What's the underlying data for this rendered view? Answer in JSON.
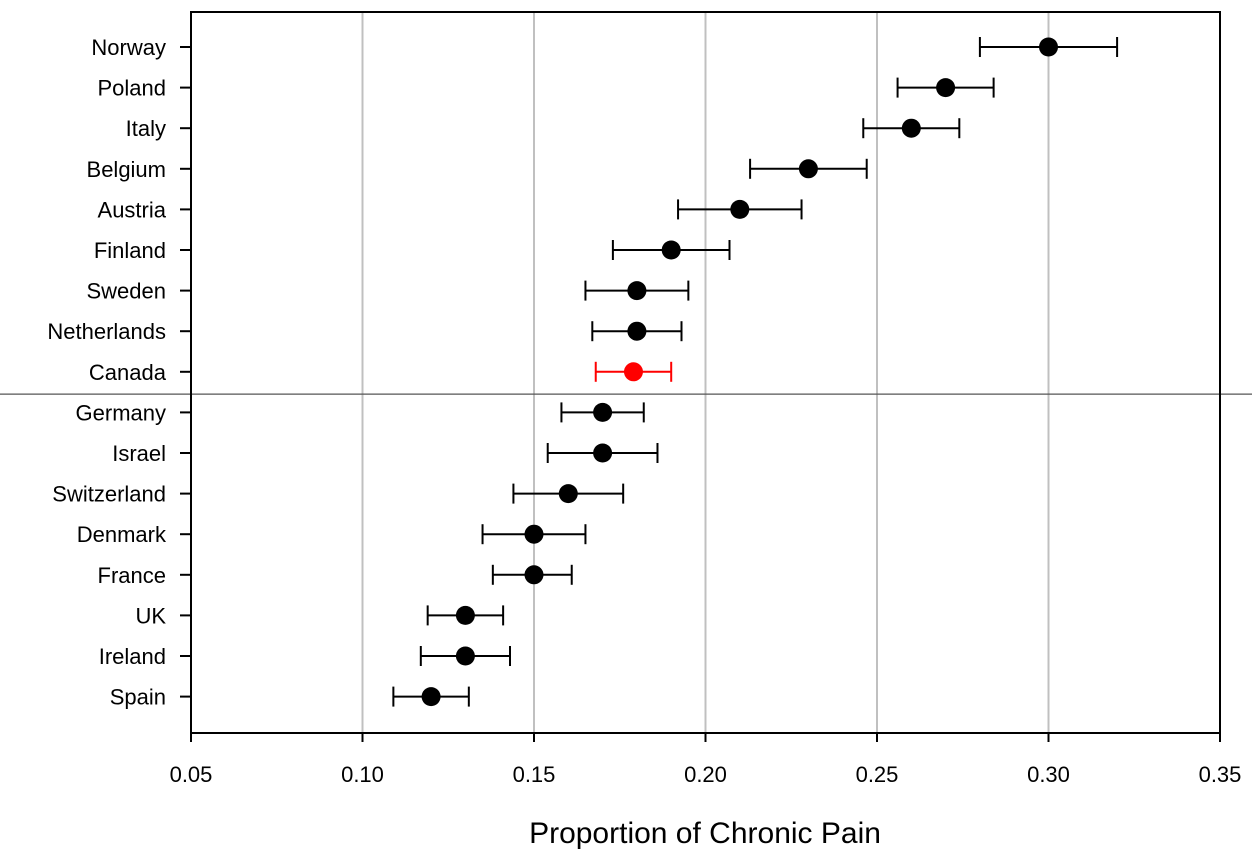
{
  "chart_data": {
    "type": "scatter",
    "xlabel": "Proportion of Chronic Pain",
    "xlim": [
      0.05,
      0.35
    ],
    "xticks": [
      "0.05",
      "0.10",
      "0.15",
      "0.20",
      "0.25",
      "0.30",
      "0.35"
    ],
    "grid": "vertical",
    "reference_line_between": [
      "Canada",
      "Germany"
    ],
    "colors": {
      "default": "#000000",
      "highlight": "#ff0000",
      "grid": "#c0c0c0"
    },
    "points": [
      {
        "country": "Norway",
        "value": 0.3,
        "lower": 0.28,
        "upper": 0.32
      },
      {
        "country": "Poland",
        "value": 0.27,
        "lower": 0.256,
        "upper": 0.284
      },
      {
        "country": "Italy",
        "value": 0.26,
        "lower": 0.246,
        "upper": 0.274
      },
      {
        "country": "Belgium",
        "value": 0.23,
        "lower": 0.213,
        "upper": 0.247
      },
      {
        "country": "Austria",
        "value": 0.21,
        "lower": 0.192,
        "upper": 0.228
      },
      {
        "country": "Finland",
        "value": 0.19,
        "lower": 0.173,
        "upper": 0.207
      },
      {
        "country": "Sweden",
        "value": 0.18,
        "lower": 0.165,
        "upper": 0.195
      },
      {
        "country": "Netherlands",
        "value": 0.18,
        "lower": 0.167,
        "upper": 0.193
      },
      {
        "country": "Canada",
        "value": 0.179,
        "lower": 0.168,
        "upper": 0.19,
        "highlight": true
      },
      {
        "country": "Germany",
        "value": 0.17,
        "lower": 0.158,
        "upper": 0.182
      },
      {
        "country": "Israel",
        "value": 0.17,
        "lower": 0.154,
        "upper": 0.186
      },
      {
        "country": "Switzerland",
        "value": 0.16,
        "lower": 0.144,
        "upper": 0.176
      },
      {
        "country": "Denmark",
        "value": 0.15,
        "lower": 0.135,
        "upper": 0.165
      },
      {
        "country": "France",
        "value": 0.15,
        "lower": 0.138,
        "upper": 0.161
      },
      {
        "country": "UK",
        "value": 0.13,
        "lower": 0.119,
        "upper": 0.141
      },
      {
        "country": "Ireland",
        "value": 0.13,
        "lower": 0.117,
        "upper": 0.143
      },
      {
        "country": "Spain",
        "value": 0.12,
        "lower": 0.109,
        "upper": 0.131
      }
    ]
  }
}
